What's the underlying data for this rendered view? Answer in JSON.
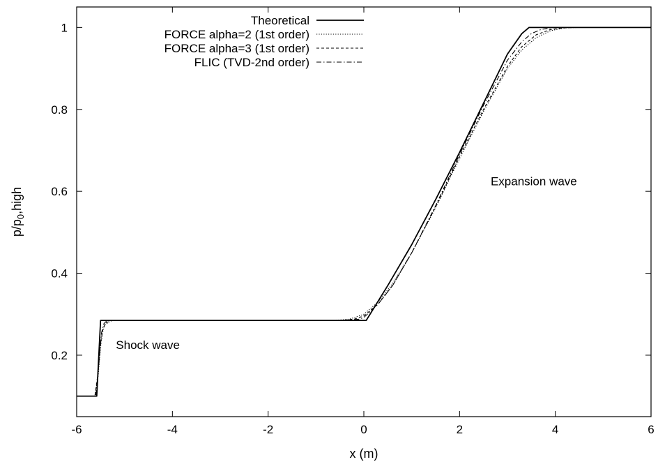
{
  "chart_data": {
    "type": "line",
    "title": "",
    "xlabel": "x (m)",
    "ylabel": {
      "main": "p/p",
      "sub": "0",
      "suffix": ",high"
    },
    "xlim": [
      -6,
      6
    ],
    "ylim": [
      0.05,
      1.05
    ],
    "xticks": [
      -6,
      -4,
      -2,
      0,
      2,
      4,
      6
    ],
    "yticks": [
      0.2,
      0.4,
      0.6,
      0.8,
      1
    ],
    "xtick_labels": [
      "-6",
      "-4",
      "-2",
      "0",
      "2",
      "4",
      "6"
    ],
    "ytick_labels": [
      "0.2",
      "0.4",
      "0.6",
      "0.8",
      "1"
    ],
    "grid": false,
    "legend_position": "top-right",
    "annotations": [
      {
        "text": "Expansion wave",
        "x": 2.65,
        "y": 0.615
      },
      {
        "text": "Shock wave",
        "x": -5.18,
        "y": 0.215
      }
    ],
    "series": [
      {
        "name": "Theoretical",
        "style": "solid",
        "x": [
          -6,
          -5.58,
          -5.5,
          0.05,
          0.5,
          1.0,
          1.5,
          2.0,
          2.5,
          3.0,
          3.3,
          3.45,
          6
        ],
        "y": [
          0.1,
          0.1,
          0.285,
          0.285,
          0.37,
          0.47,
          0.58,
          0.695,
          0.815,
          0.935,
          0.985,
          1.0,
          1.0
        ]
      },
      {
        "name": "FORCE alpha=2 (1st order)",
        "style": "dotted",
        "x": [
          -6,
          -5.62,
          -5.55,
          -5.5,
          -5.45,
          -5.4,
          -5.3,
          -5.2,
          -0.6,
          -0.3,
          0.0,
          0.3,
          0.6,
          1.0,
          1.5,
          2.0,
          2.5,
          3.0,
          3.3,
          3.6,
          3.9,
          4.2,
          4.5,
          6
        ],
        "y": [
          0.1,
          0.1,
          0.15,
          0.22,
          0.26,
          0.275,
          0.283,
          0.285,
          0.285,
          0.288,
          0.3,
          0.33,
          0.375,
          0.45,
          0.56,
          0.68,
          0.795,
          0.9,
          0.945,
          0.975,
          0.992,
          0.999,
          1.0,
          1.0
        ]
      },
      {
        "name": "FORCE alpha=3 (1st order)",
        "style": "dashed",
        "x": [
          -6,
          -5.62,
          -5.55,
          -5.5,
          -5.45,
          -5.4,
          -5.3,
          -5.2,
          -0.5,
          -0.2,
          0.0,
          0.3,
          0.6,
          1.0,
          1.5,
          2.0,
          2.5,
          3.0,
          3.3,
          3.6,
          3.9,
          4.2,
          4.4,
          6
        ],
        "y": [
          0.1,
          0.1,
          0.16,
          0.23,
          0.265,
          0.278,
          0.284,
          0.285,
          0.285,
          0.288,
          0.296,
          0.325,
          0.37,
          0.45,
          0.562,
          0.685,
          0.8,
          0.905,
          0.953,
          0.982,
          0.995,
          0.999,
          1.0,
          1.0
        ]
      },
      {
        "name": "FLIC (TVD-2nd order)",
        "style": "dashdot",
        "x": [
          -6,
          -5.6,
          -5.53,
          -5.48,
          -5.43,
          -5.38,
          -5.3,
          -0.4,
          -0.1,
          0.0,
          0.3,
          0.6,
          1.0,
          1.5,
          2.0,
          2.5,
          3.0,
          3.3,
          3.5,
          3.7,
          3.9,
          4.1,
          6
        ],
        "y": [
          0.1,
          0.1,
          0.19,
          0.255,
          0.277,
          0.283,
          0.285,
          0.285,
          0.288,
          0.292,
          0.325,
          0.37,
          0.45,
          0.565,
          0.69,
          0.81,
          0.92,
          0.965,
          0.985,
          0.995,
          0.999,
          1.0,
          1.0
        ]
      }
    ]
  }
}
